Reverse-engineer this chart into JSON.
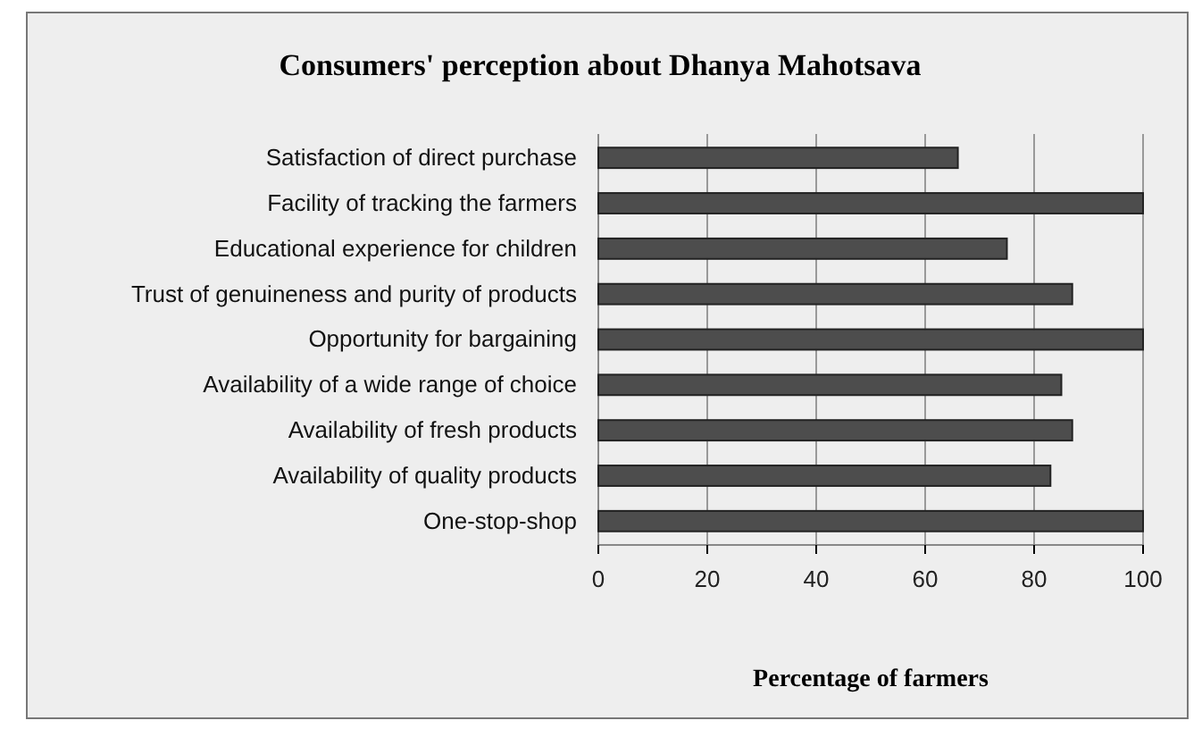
{
  "chart_data": {
    "type": "bar",
    "orientation": "horizontal",
    "title": "Consumers' perception about Dhanya Mahotsava",
    "xlabel": "Percentage of farmers",
    "categories": [
      "Satisfaction of direct purchase",
      "Facility of tracking the farmers",
      "Educational experience for children",
      "Trust of genuineness and purity of products",
      "Opportunity for bargaining",
      "Availability of a wide range of choice",
      "Availability of fresh products",
      "Availability of quality products",
      "One-stop-shop"
    ],
    "values": [
      66,
      100,
      75,
      87,
      100,
      85,
      87,
      83,
      100
    ],
    "color": "#4d4d4d",
    "xlim": [
      0,
      100
    ],
    "xticks": [
      0,
      20,
      40,
      60,
      80,
      100
    ],
    "grid": "x"
  }
}
